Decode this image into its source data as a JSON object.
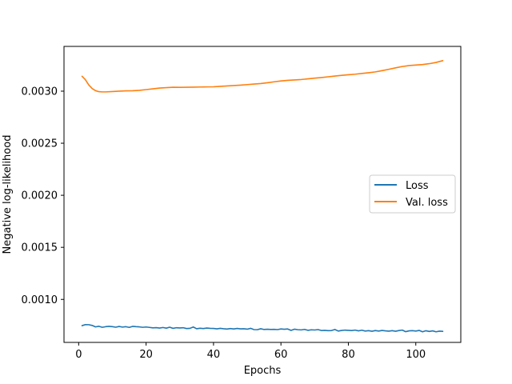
{
  "chart_data": {
    "type": "line",
    "title": "",
    "xlabel": "Epochs",
    "ylabel": "Negative log-likelihood",
    "xlim": [
      -4.35,
      113.35
    ],
    "ylim": [
      0.000587,
      0.00343
    ],
    "xticks": [
      0,
      20,
      40,
      60,
      80,
      100
    ],
    "xtick_labels": [
      "0",
      "20",
      "40",
      "60",
      "80",
      "100"
    ],
    "yticks": [
      0.001,
      0.0015,
      0.002,
      0.0025,
      0.003
    ],
    "ytick_labels": [
      "0.0010",
      "0.0015",
      "0.0020",
      "0.0025",
      "0.0030"
    ],
    "grid": false,
    "legend_position": "center-right",
    "series": [
      {
        "name": "Loss",
        "color": "#1f77b4",
        "points": [
          [
            1,
            0.000748
          ],
          [
            2,
            0.000758
          ],
          [
            3,
            0.000757
          ],
          [
            4,
            0.00075
          ],
          [
            5,
            0.000736
          ],
          [
            6,
            0.000742
          ],
          [
            7,
            0.000732
          ],
          [
            8,
            0.000738
          ],
          [
            9,
            0.000741
          ],
          [
            10,
            0.000738
          ],
          [
            11,
            0.000733
          ],
          [
            12,
            0.00074
          ],
          [
            13,
            0.000734
          ],
          [
            14,
            0.000738
          ],
          [
            15,
            0.000731
          ],
          [
            16,
            0.000741
          ],
          [
            17,
            0.000738
          ],
          [
            18,
            0.000736
          ],
          [
            19,
            0.000732
          ],
          [
            20,
            0.000735
          ],
          [
            21,
            0.000731
          ],
          [
            22,
            0.000727
          ],
          [
            23,
            0.000729
          ],
          [
            24,
            0.000725
          ],
          [
            25,
            0.00073
          ],
          [
            26,
            0.000724
          ],
          [
            27,
            0.000733
          ],
          [
            28,
            0.000722
          ],
          [
            29,
            0.000728
          ],
          [
            30,
            0.000726
          ],
          [
            31,
            0.000728
          ],
          [
            32,
            0.00072
          ],
          [
            33,
            0.000722
          ],
          [
            34,
            0.000735
          ],
          [
            35,
            0.000718
          ],
          [
            36,
            0.000723
          ],
          [
            37,
            0.00072
          ],
          [
            38,
            0.000725
          ],
          [
            39,
            0.000722
          ],
          [
            40,
            0.000721
          ],
          [
            41,
            0.000717
          ],
          [
            42,
            0.000722
          ],
          [
            43,
            0.000718
          ],
          [
            44,
            0.000715
          ],
          [
            45,
            0.00072
          ],
          [
            46,
            0.000716
          ],
          [
            47,
            0.000721
          ],
          [
            48,
            0.000717
          ],
          [
            49,
            0.000718
          ],
          [
            50,
            0.000714
          ],
          [
            51,
            0.000722
          ],
          [
            52,
            0.00071
          ],
          [
            53,
            0.000709
          ],
          [
            54,
            0.000718
          ],
          [
            55,
            0.000711
          ],
          [
            56,
            0.000713
          ],
          [
            57,
            0.000711
          ],
          [
            58,
            0.000712
          ],
          [
            59,
            0.00071
          ],
          [
            60,
            0.000716
          ],
          [
            61,
            0.000713
          ],
          [
            62,
            0.000716
          ],
          [
            63,
            0.000702
          ],
          [
            64,
            0.000714
          ],
          [
            65,
            0.000709
          ],
          [
            66,
            0.000707
          ],
          [
            67,
            0.000712
          ],
          [
            68,
            0.000703
          ],
          [
            69,
            0.000708
          ],
          [
            70,
            0.000706
          ],
          [
            71,
            0.00071
          ],
          [
            72,
            0.000701
          ],
          [
            73,
            0.000703
          ],
          [
            74,
            0.0007
          ],
          [
            75,
            0.000701
          ],
          [
            76,
            0.000711
          ],
          [
            77,
            0.000696
          ],
          [
            78,
            0.000702
          ],
          [
            79,
            0.000705
          ],
          [
            80,
            0.000703
          ],
          [
            81,
            0.000701
          ],
          [
            82,
            0.000705
          ],
          [
            83,
            0.000698
          ],
          [
            84,
            0.000704
          ],
          [
            85,
            0.000696
          ],
          [
            86,
            0.0007
          ],
          [
            87,
            0.000694
          ],
          [
            88,
            0.000701
          ],
          [
            89,
            0.000696
          ],
          [
            90,
            0.000702
          ],
          [
            91,
            0.000698
          ],
          [
            92,
            0.000695
          ],
          [
            93,
            0.0007
          ],
          [
            94,
            0.000694
          ],
          [
            95,
            0.000701
          ],
          [
            96,
            0.000705
          ],
          [
            97,
            0.00069
          ],
          [
            98,
            0.000698
          ],
          [
            99,
            0.0007
          ],
          [
            100,
            0.000696
          ],
          [
            101,
            0.000702
          ],
          [
            102,
            0.000689
          ],
          [
            103,
            0.000699
          ],
          [
            104,
            0.000692
          ],
          [
            105,
            0.000698
          ],
          [
            106,
            0.000689
          ],
          [
            107,
            0.000695
          ],
          [
            108,
            0.000693
          ]
        ]
      },
      {
        "name": "Val. loss",
        "color": "#ff7f0e",
        "points": [
          [
            1,
            0.003143
          ],
          [
            2,
            0.00311
          ],
          [
            3,
            0.00306
          ],
          [
            4,
            0.003025
          ],
          [
            5,
            0.003005
          ],
          [
            6,
            0.002995
          ],
          [
            7,
            0.002993
          ],
          [
            8,
            0.002993
          ],
          [
            10,
            0.002996
          ],
          [
            12,
            0.003
          ],
          [
            14,
            0.003003
          ],
          [
            16,
            0.003004
          ],
          [
            18,
            0.003008
          ],
          [
            20,
            0.003015
          ],
          [
            22,
            0.003022
          ],
          [
            24,
            0.00303
          ],
          [
            26,
            0.003034
          ],
          [
            28,
            0.003038
          ],
          [
            30,
            0.003037
          ],
          [
            32,
            0.003038
          ],
          [
            34,
            0.003039
          ],
          [
            36,
            0.00304
          ],
          [
            38,
            0.003041
          ],
          [
            40,
            0.003042
          ],
          [
            42,
            0.003046
          ],
          [
            44,
            0.00305
          ],
          [
            46,
            0.003054
          ],
          [
            48,
            0.003058
          ],
          [
            50,
            0.003063
          ],
          [
            52,
            0.003068
          ],
          [
            54,
            0.003073
          ],
          [
            56,
            0.003081
          ],
          [
            58,
            0.00309
          ],
          [
            60,
            0.003098
          ],
          [
            62,
            0.003104
          ],
          [
            64,
            0.003108
          ],
          [
            66,
            0.003112
          ],
          [
            68,
            0.003118
          ],
          [
            70,
            0.003125
          ],
          [
            72,
            0.003131
          ],
          [
            74,
            0.003138
          ],
          [
            76,
            0.003145
          ],
          [
            78,
            0.003152
          ],
          [
            80,
            0.003158
          ],
          [
            82,
            0.003163
          ],
          [
            84,
            0.00317
          ],
          [
            86,
            0.003177
          ],
          [
            88,
            0.003185
          ],
          [
            90,
            0.003197
          ],
          [
            92,
            0.00321
          ],
          [
            94,
            0.003224
          ],
          [
            96,
            0.003237
          ],
          [
            98,
            0.003246
          ],
          [
            100,
            0.003251
          ],
          [
            102,
            0.003256
          ],
          [
            104,
            0.003264
          ],
          [
            106,
            0.003276
          ],
          [
            108,
            0.003293
          ]
        ]
      }
    ]
  }
}
